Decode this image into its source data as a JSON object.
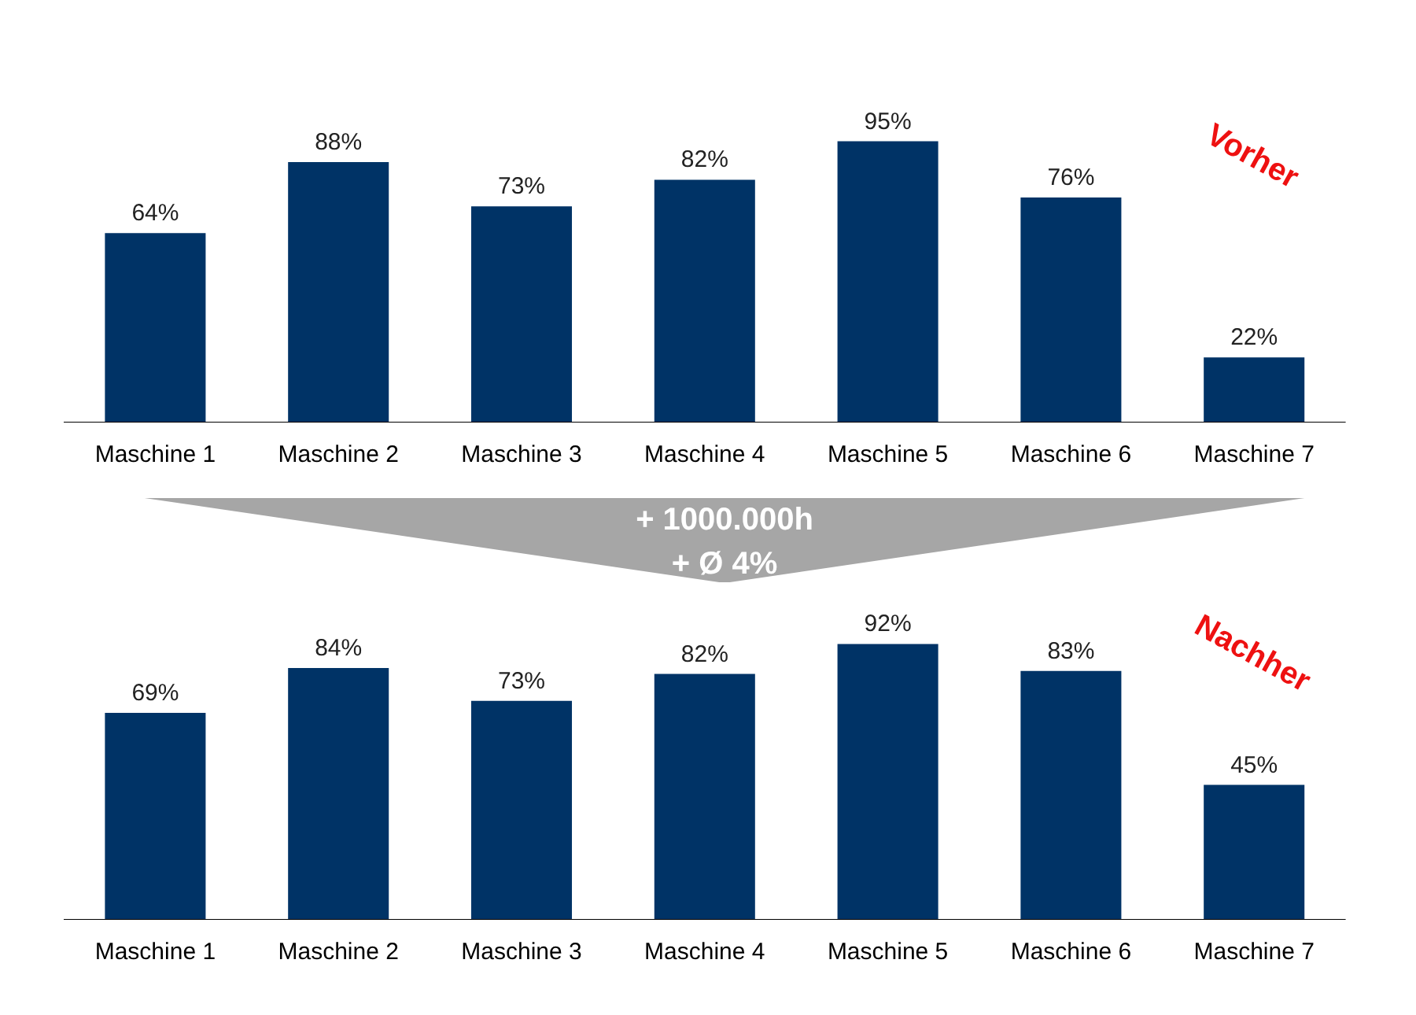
{
  "chart_data": [
    {
      "type": "bar",
      "categories": [
        "Maschine 1",
        "Maschine 2",
        "Maschine 3",
        "Maschine 4",
        "Maschine 5",
        "Maschine 6",
        "Maschine 7"
      ],
      "values": [
        64,
        88,
        73,
        82,
        95,
        76,
        22
      ],
      "value_labels": [
        "64%",
        "88%",
        "73%",
        "82%",
        "95%",
        "76%",
        "22%"
      ],
      "color": "#003366",
      "annotations": [
        "Vorher",
        "+ 1000.000h",
        "+ Ø 4%"
      ]
    },
    {
      "type": "bar",
      "categories": [
        "Maschine 1",
        "Maschine 2",
        "Maschine 3",
        "Maschine 4",
        "Maschine 5",
        "Maschine 6",
        "Maschine 7"
      ],
      "values": [
        69,
        84,
        73,
        82,
        92,
        83,
        45
      ],
      "value_labels": [
        "69%",
        "84%",
        "73%",
        "82%",
        "92%",
        "83%",
        "45%"
      ],
      "color": "#003366",
      "annotations": [
        "Nachher"
      ]
    }
  ]
}
